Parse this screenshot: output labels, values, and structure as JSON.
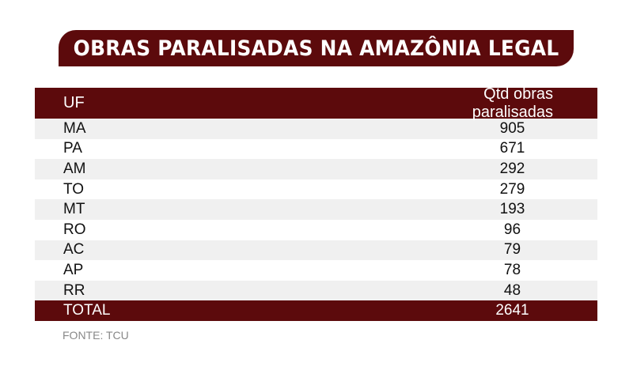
{
  "title": "OBRAS PARALISADAS NA AMAZÔNIA LEGAL",
  "source": "FONTE: TCU",
  "colors": {
    "accent": "#5c0a0c",
    "stripe": "#f0f0f0"
  },
  "chart_data": {
    "type": "table",
    "title": "OBRAS PARALISADAS NA AMAZÔNIA LEGAL",
    "columns": [
      "UF",
      "Qtd obras paralisadas"
    ],
    "rows": [
      [
        "MA",
        "905"
      ],
      [
        "PA",
        "671"
      ],
      [
        "AM",
        "292"
      ],
      [
        "TO",
        "279"
      ],
      [
        "MT",
        "193"
      ],
      [
        "RO",
        "96"
      ],
      [
        "AC",
        "79"
      ],
      [
        "AP",
        "78"
      ],
      [
        "RR",
        "48"
      ]
    ],
    "total": [
      "TOTAL",
      "2641"
    ]
  }
}
